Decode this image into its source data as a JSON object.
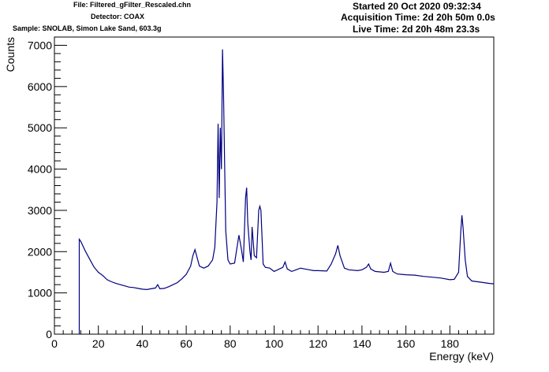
{
  "header": {
    "file": "File: Filtered_gFilter_Rescaled.chn",
    "detector": "Detector: COAX",
    "sample": "Sample: SNOLAB, Simon Lake Sand, 603.3g",
    "started": "Started 20 Oct 2020 09:32:34",
    "acquisition": "Acquisition Time: 2d 20h 50m 0.0s",
    "live": "Live Time: 2d 20h 48m 23.3s"
  },
  "chart_data": {
    "type": "line",
    "xlabel": "Energy (keV)",
    "ylabel": "Counts",
    "xlim": [
      0,
      200
    ],
    "ylim": [
      0,
      7200
    ],
    "xticks": [
      0,
      20,
      40,
      60,
      80,
      100,
      120,
      140,
      160,
      180
    ],
    "yticks": [
      0,
      1000,
      2000,
      3000,
      4000,
      5000,
      6000,
      7000
    ],
    "line_color": "#000080",
    "series": [
      {
        "x": [
          11.3,
          12,
          14,
          16,
          18,
          20,
          22,
          24,
          26,
          28,
          30,
          32,
          34,
          36,
          38,
          40,
          42,
          44,
          46,
          47,
          48,
          50,
          52,
          54,
          56,
          58,
          60,
          62,
          63,
          64,
          66,
          68,
          70,
          72,
          73,
          74,
          74.5,
          75,
          75.5,
          76,
          76.5,
          77,
          77.5,
          78,
          79,
          80,
          82,
          84,
          85,
          86,
          87,
          87.5,
          88,
          89,
          89.5,
          90,
          91,
          92,
          93,
          93.5,
          94,
          95,
          96,
          98,
          100,
          104,
          105,
          106,
          108,
          110,
          112,
          114,
          116,
          118,
          120,
          124,
          126,
          128,
          129,
          130,
          132,
          134,
          138,
          140,
          142,
          143,
          144,
          146,
          150,
          152,
          153,
          154,
          156,
          160,
          164,
          168,
          172,
          176,
          180,
          182,
          184,
          185,
          185.5,
          186,
          187,
          188,
          190,
          194,
          198,
          200
        ],
        "y": [
          2300,
          2250,
          2020,
          1820,
          1630,
          1500,
          1420,
          1320,
          1270,
          1230,
          1200,
          1170,
          1140,
          1130,
          1110,
          1090,
          1080,
          1100,
          1120,
          1200,
          1100,
          1110,
          1150,
          1200,
          1250,
          1340,
          1450,
          1650,
          1900,
          2050,
          1650,
          1600,
          1650,
          1800,
          2100,
          3200,
          5100,
          3300,
          5000,
          4000,
          6900,
          5800,
          4100,
          2500,
          1800,
          1700,
          1720,
          2400,
          2100,
          1750,
          3300,
          3550,
          2700,
          2000,
          1800,
          2600,
          1900,
          1850,
          3000,
          3100,
          3000,
          1700,
          1620,
          1600,
          1520,
          1620,
          1750,
          1580,
          1520,
          1560,
          1600,
          1580,
          1560,
          1540,
          1540,
          1530,
          1700,
          1950,
          2150,
          1900,
          1600,
          1560,
          1540,
          1560,
          1620,
          1700,
          1580,
          1520,
          1500,
          1520,
          1720,
          1520,
          1460,
          1440,
          1430,
          1400,
          1380,
          1360,
          1320,
          1330,
          1500,
          2500,
          2880,
          2600,
          1800,
          1400,
          1290,
          1260,
          1230,
          1220
        ]
      }
    ]
  }
}
